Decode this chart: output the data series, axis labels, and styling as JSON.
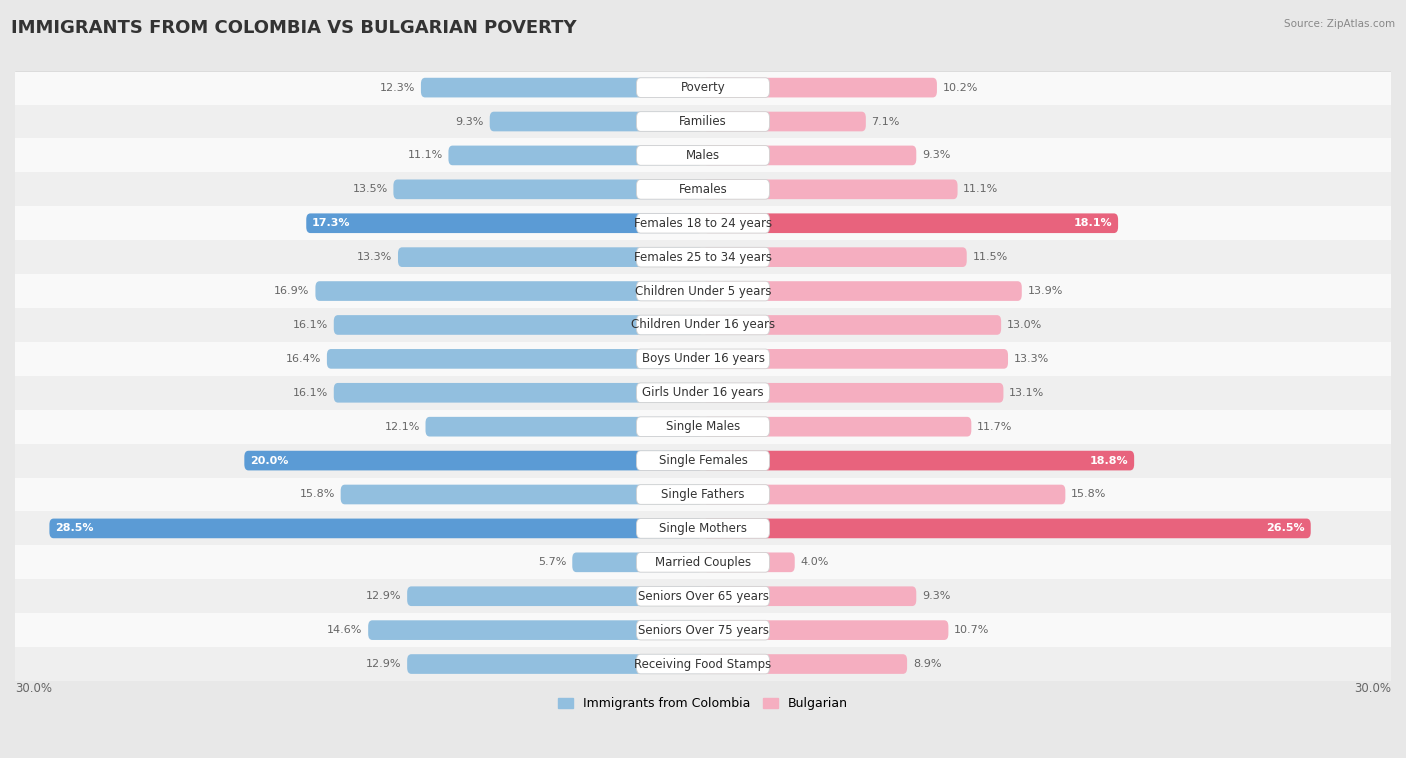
{
  "title": "IMMIGRANTS FROM COLOMBIA VS BULGARIAN POVERTY",
  "source": "Source: ZipAtlas.com",
  "categories": [
    "Poverty",
    "Families",
    "Males",
    "Females",
    "Females 18 to 24 years",
    "Females 25 to 34 years",
    "Children Under 5 years",
    "Children Under 16 years",
    "Boys Under 16 years",
    "Girls Under 16 years",
    "Single Males",
    "Single Females",
    "Single Fathers",
    "Single Mothers",
    "Married Couples",
    "Seniors Over 65 years",
    "Seniors Over 75 years",
    "Receiving Food Stamps"
  ],
  "left_values": [
    12.3,
    9.3,
    11.1,
    13.5,
    17.3,
    13.3,
    16.9,
    16.1,
    16.4,
    16.1,
    12.1,
    20.0,
    15.8,
    28.5,
    5.7,
    12.9,
    14.6,
    12.9
  ],
  "right_values": [
    10.2,
    7.1,
    9.3,
    11.1,
    18.1,
    11.5,
    13.9,
    13.0,
    13.3,
    13.1,
    11.7,
    18.8,
    15.8,
    26.5,
    4.0,
    9.3,
    10.7,
    8.9
  ],
  "left_color": "#92bfdf",
  "right_color": "#f5aec0",
  "left_highlight_color": "#5b9bd5",
  "right_highlight_color": "#e8637d",
  "left_label": "Immigrants from Colombia",
  "right_label": "Bulgarian",
  "highlight_rows": [
    4,
    11,
    13
  ],
  "x_max": 30.0,
  "fig_bg_color": "#e8e8e8",
  "chart_bg_color": "#f2f2f2",
  "row_odd_color": "#f9f9f9",
  "row_even_color": "#efefef",
  "title_fontsize": 13,
  "label_fontsize": 8.5,
  "value_fontsize": 8.0
}
